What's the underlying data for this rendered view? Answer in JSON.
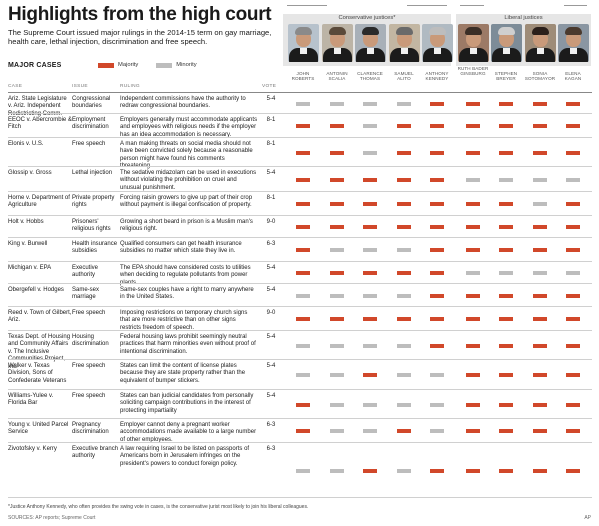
{
  "header": {
    "title": "Highlights from the high court",
    "subtitle": "The Supreme Court issued major rulings in the 2014-15 term on gay marriage, health care, lethal injection, discrimination and free speech.",
    "section_label": "MAJOR CASES",
    "legend_majority": "Majority",
    "legend_minority": "Minority",
    "conservative_label": "Conservative justices*",
    "liberal_label": "Liberal justices"
  },
  "colors": {
    "majority": "#d1482a",
    "minority": "#bdbdbd",
    "group_bg": "#e6e6e6"
  },
  "column_headers": {
    "case": "CASE",
    "issue": "ISSUE",
    "ruling": "RULING",
    "vote": "VOTE"
  },
  "justices": [
    {
      "name": "JOHN ROBERTS",
      "group": "conservative"
    },
    {
      "name": "ANTONIN SCALIA",
      "group": "conservative"
    },
    {
      "name": "CLARENCE THOMAS",
      "group": "conservative"
    },
    {
      "name": "SAMUEL ALITO",
      "group": "conservative"
    },
    {
      "name": "ANTHONY KENNEDY",
      "group": "conservative"
    },
    {
      "name": "RUTH BADER GINSBURG",
      "group": "liberal"
    },
    {
      "name": "STEPHEN BREYER",
      "group": "liberal"
    },
    {
      "name": "SONIA SOTOMAYOR",
      "group": "liberal"
    },
    {
      "name": "ELENA KAGAN",
      "group": "liberal"
    }
  ],
  "cases": [
    {
      "case": "Ariz. State Legislature v. Ariz. Independent Redistricting Comm.",
      "issue": "Congressional boundaries",
      "ruling": "Independent commissions have the authority to redraw congressional boundaries.",
      "vote": "5-4",
      "votes": [
        "min",
        "min",
        "min",
        "min",
        "maj",
        "maj",
        "maj",
        "maj",
        "maj"
      ]
    },
    {
      "case": "EEOC v. Abercrombie & Fitch",
      "issue": "Employment discrimination",
      "ruling": "Employers generally must accommodate applicants and employees with religious needs if the employer has an idea accommodation is necessary.",
      "vote": "8-1",
      "votes": [
        "maj",
        "maj",
        "min",
        "maj",
        "maj",
        "maj",
        "maj",
        "maj",
        "maj"
      ]
    },
    {
      "case": "Elonis v. U.S.",
      "issue": "Free speech",
      "ruling": "A man making threats on social media should not have been convicted solely because a reasonable person might have found his comments threatening.",
      "vote": "8-1",
      "votes": [
        "maj",
        "maj",
        "min",
        "maj",
        "maj",
        "maj",
        "maj",
        "maj",
        "maj"
      ]
    },
    {
      "case": "Glossip v. Gross",
      "issue": "Lethal injection",
      "ruling": "The sedative midazolam can be used in executions without violating the prohibition on cruel and unusual punishment.",
      "vote": "5-4",
      "votes": [
        "maj",
        "maj",
        "maj",
        "maj",
        "maj",
        "min",
        "min",
        "min",
        "min"
      ]
    },
    {
      "case": "Horne v. Department of Agriculture",
      "issue": "Private property rights",
      "ruling": "Forcing raisin growers to give up part of their crop without payment is illegal confiscation of property.",
      "vote": "8-1",
      "votes": [
        "maj",
        "maj",
        "maj",
        "maj",
        "maj",
        "maj",
        "maj",
        "min",
        "maj"
      ]
    },
    {
      "case": "Holt v. Hobbs",
      "issue": "Prisoners' religious rights",
      "ruling": "Growing a short beard in prison is a Muslim man's religious right.",
      "vote": "9-0",
      "votes": [
        "maj",
        "maj",
        "maj",
        "maj",
        "maj",
        "maj",
        "maj",
        "maj",
        "maj"
      ]
    },
    {
      "case": "King v. Burwell",
      "issue": "Health insurance subsidies",
      "ruling": "Qualified consumers can get health insurance subsidies no matter which state they live in.",
      "vote": "6-3",
      "votes": [
        "maj",
        "min",
        "min",
        "min",
        "maj",
        "maj",
        "maj",
        "maj",
        "maj"
      ]
    },
    {
      "case": "Michigan v. EPA",
      "issue": "Executive authority",
      "ruling": "The EPA should have considered costs to utilities when deciding to regulate pollutants from power plants.",
      "vote": "5-4",
      "votes": [
        "maj",
        "maj",
        "maj",
        "maj",
        "maj",
        "min",
        "min",
        "min",
        "min"
      ]
    },
    {
      "case": "Obergefell v. Hodges",
      "issue": "Same-sex marriage",
      "ruling": "Same-sex couples have a right to marry anywhere in the United States.",
      "vote": "5-4",
      "votes": [
        "min",
        "min",
        "min",
        "min",
        "maj",
        "maj",
        "maj",
        "maj",
        "maj"
      ]
    },
    {
      "case": "Reed v. Town of Gilbert, Ariz.",
      "issue": "Free speech",
      "ruling": "Imposing restrictions on temporary church signs that are more restrictive than on other signs restricts freedom of speech.",
      "vote": "9-0",
      "votes": [
        "maj",
        "maj",
        "maj",
        "maj",
        "maj",
        "maj",
        "maj",
        "maj",
        "maj"
      ]
    },
    {
      "case": "Texas Dept. of Housing and Community Affairs v. The Inclusive Communities Project, Inc.",
      "issue": "Housing discrimination",
      "ruling": "Federal housing laws prohibit seemingly neutral practices that harm minorities even without proof of intentional discrimination.",
      "vote": "5-4",
      "votes": [
        "min",
        "min",
        "min",
        "min",
        "maj",
        "maj",
        "maj",
        "maj",
        "maj"
      ]
    },
    {
      "case": "Walker v. Texas Division, Sons of Confederate Veterans",
      "issue": "Free speech",
      "ruling": "States can limit the content of license plates because they are state property rather than the equivalent of bumper stickers.",
      "vote": "5-4",
      "votes": [
        "min",
        "min",
        "maj",
        "min",
        "min",
        "maj",
        "maj",
        "maj",
        "maj"
      ]
    },
    {
      "case": "Williams-Yulee v. Florida Bar",
      "issue": "Free speech",
      "ruling": "States can ban judicial candidates from personally soliciting campaign contributions in the interest of protecting impartiality",
      "vote": "5-4",
      "votes": [
        "maj",
        "min",
        "min",
        "min",
        "min",
        "maj",
        "maj",
        "maj",
        "maj"
      ]
    },
    {
      "case": "Young v. United Parcel Service",
      "issue": "Pregnancy discrimination",
      "ruling": "Employer cannot deny a pregnant worker accommodations made available to a large number of other employees.",
      "vote": "6-3",
      "votes": [
        "maj",
        "min",
        "min",
        "maj",
        "min",
        "maj",
        "maj",
        "maj",
        "maj"
      ]
    },
    {
      "case": "Zivotofsky v. Kerry",
      "issue": "Executive branch authority",
      "ruling": "A law requiring Israel to be listed on passports of Americans born in Jerusalem infringes on the president's powers to conduct foreign policy.",
      "vote": "6-3",
      "votes": [
        "min",
        "min",
        "maj",
        "min",
        "maj",
        "maj",
        "maj",
        "maj",
        "maj"
      ]
    }
  ],
  "footnote": "*Justice Anthony Kennedy, who often provides the swing vote in cases, is the conservative jurist most likely to join his liberal colleagues.",
  "source": "SOURCES: AP reports; Supreme Court",
  "credit": "AP"
}
